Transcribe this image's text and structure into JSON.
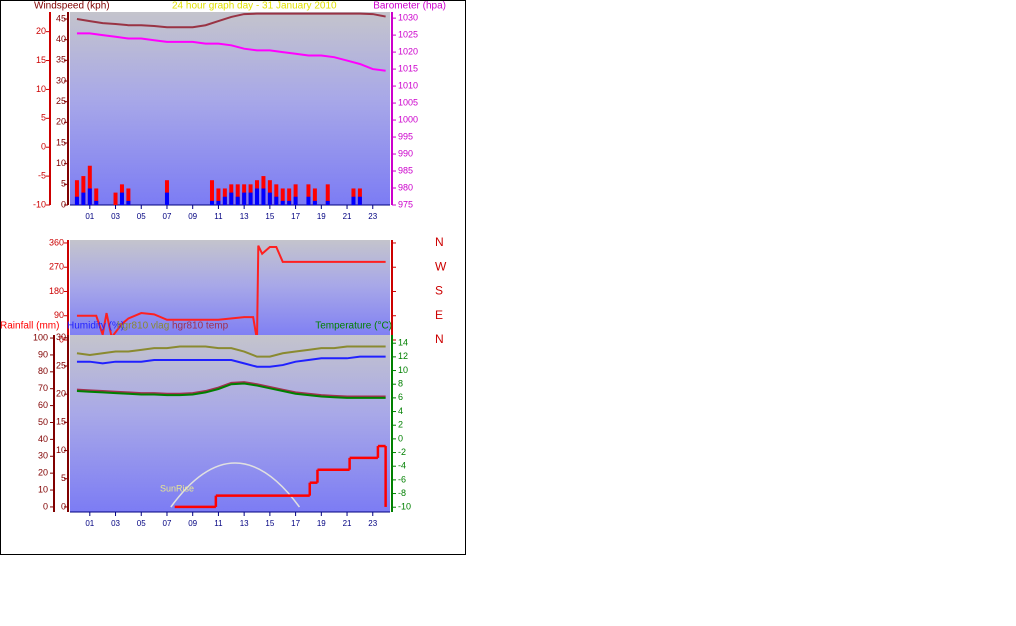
{
  "chart_data": [
    {
      "type": "combo",
      "title": "24 hour graph day - 31 January 2010",
      "ylabel": "Windspeed (kph)",
      "y2label": "Barometer (hpa)",
      "xlim": [
        -0.54,
        24.34
      ],
      "xticks": [
        {
          "value": 1,
          "label": "01"
        },
        {
          "value": 3,
          "label": "03"
        },
        {
          "value": 5,
          "label": "05"
        },
        {
          "value": 7,
          "label": "07"
        },
        {
          "value": 9,
          "label": "09"
        },
        {
          "value": 11,
          "label": "11"
        },
        {
          "value": 13,
          "label": "13"
        },
        {
          "value": 15,
          "label": "15"
        },
        {
          "value": 17,
          "label": "17"
        },
        {
          "value": 19,
          "label": "19"
        },
        {
          "value": 21,
          "label": "21"
        },
        {
          "value": 23,
          "label": "23"
        }
      ],
      "ylim": [
        0,
        46.7
      ],
      "yticks": [
        0,
        5,
        10,
        15,
        20,
        25,
        30,
        35,
        40,
        45
      ],
      "y3lim": [
        -10,
        23.4
      ],
      "y3ticks": [
        -10,
        -5,
        0,
        5,
        10,
        15,
        20
      ],
      "y2lim": [
        975,
        1031.8
      ],
      "y2ticks": [
        975,
        980,
        985,
        990,
        995,
        1000,
        1005,
        1010,
        1015,
        1020,
        1025,
        1030
      ],
      "series": [
        {
          "type": "bar",
          "color": "#ff0000",
          "x": [
            0,
            0.5,
            1,
            1.5,
            2,
            2.5,
            3,
            3.5,
            4,
            4.5,
            5,
            5.5,
            6,
            6.5,
            7,
            7.5,
            8,
            8.5,
            9,
            9.5,
            10,
            10.5,
            11,
            11.5,
            12,
            12.5,
            13,
            13.5,
            14,
            14.5,
            15,
            15.5,
            16,
            16.5,
            17,
            17.5,
            18,
            18.5,
            19,
            19.5,
            20,
            20.5,
            21,
            21.5,
            22,
            22.5,
            23,
            23.5
          ],
          "values": [
            6,
            7,
            9.5,
            4,
            0,
            0,
            3,
            5,
            4,
            0,
            0,
            0,
            0,
            0,
            6,
            0,
            0,
            0,
            0,
            0,
            0,
            6,
            4,
            4,
            5,
            5,
            5,
            5,
            6,
            7,
            6,
            5,
            4,
            4,
            5,
            0,
            5,
            4,
            0,
            5,
            0,
            0,
            0,
            4,
            4,
            0,
            0,
            0
          ]
        },
        {
          "type": "bar",
          "color": "#0000ff",
          "x": [
            0,
            0.5,
            1,
            1.5,
            2,
            2.5,
            3,
            3.5,
            4,
            4.5,
            5,
            5.5,
            6,
            6.5,
            7,
            7.5,
            8,
            8.5,
            9,
            9.5,
            10,
            10.5,
            11,
            11.5,
            12,
            12.5,
            13,
            13.5,
            14,
            14.5,
            15,
            15.5,
            16,
            16.5,
            17,
            17.5,
            18,
            18.5,
            19,
            19.5,
            20,
            20.5,
            21,
            21.5,
            22,
            22.5,
            23,
            23.5
          ],
          "values": [
            2,
            3,
            4,
            1,
            0,
            0,
            0,
            3,
            1,
            0,
            0,
            0,
            0,
            0,
            3,
            0,
            0,
            0,
            0,
            0,
            0,
            1,
            1,
            2,
            3,
            2,
            3,
            3,
            4,
            4,
            3,
            2,
            1,
            1,
            2,
            0,
            2,
            1,
            0,
            1,
            0,
            0,
            0,
            2,
            2,
            0,
            0,
            0
          ]
        },
        {
          "type": "line",
          "color": "#993344",
          "x": [
            0,
            1,
            2,
            3,
            4,
            5,
            6,
            7,
            8,
            9,
            10,
            11,
            12,
            13,
            14,
            15,
            16,
            17,
            18,
            19,
            20,
            21,
            22,
            23,
            24
          ],
          "values": [
            45,
            44.5,
            44,
            43.8,
            43.5,
            43.5,
            43.3,
            43,
            43,
            43,
            43.5,
            44.5,
            45.5,
            46.2,
            46.3,
            46.3,
            46.3,
            46.3,
            46.3,
            46.3,
            46.3,
            46.3,
            46.3,
            46.2,
            45.6
          ]
        },
        {
          "type": "line",
          "axis": "y2",
          "color": "#ff00ff",
          "x": [
            0,
            1,
            2,
            3,
            4,
            5,
            6,
            7,
            8,
            9,
            10,
            11,
            12,
            13,
            14,
            15,
            16,
            17,
            18,
            19,
            20,
            21,
            22,
            23,
            24
          ],
          "values": [
            1025.5,
            1025.5,
            1025,
            1024.5,
            1024,
            1024,
            1023.5,
            1023,
            1023,
            1023,
            1022.5,
            1022.5,
            1022,
            1021,
            1020.5,
            1020.5,
            1020,
            1019.5,
            1019,
            1019,
            1018.5,
            1017.5,
            1016.5,
            1015,
            1014.5
          ]
        }
      ]
    },
    {
      "type": "line",
      "xlim": [
        -0.54,
        24.34
      ],
      "ylim": [
        0,
        371
      ],
      "yticks": [
        0,
        90,
        180,
        270,
        360
      ],
      "y2lim": [
        0,
        371
      ],
      "y2ticks": [
        {
          "value": 0,
          "label": "N"
        },
        {
          "value": 90,
          "label": "E"
        },
        {
          "value": 180,
          "label": "S"
        },
        {
          "value": 270,
          "label": "W"
        },
        {
          "value": 360,
          "label": "N"
        }
      ],
      "series": [
        {
          "type": "line",
          "color": "#ff2020",
          "x": [
            0,
            1.5,
            2,
            2.3,
            2.7,
            3.5,
            4,
            5,
            6,
            7,
            11,
            13,
            13.7,
            14,
            14.1,
            14.4,
            15,
            15.5,
            16,
            24
          ],
          "values": [
            90,
            90,
            20,
            100,
            10,
            60,
            80,
            100,
            95,
            75,
            75,
            85,
            85,
            0,
            350,
            320,
            345,
            345,
            290,
            290
          ]
        }
      ]
    },
    {
      "type": "combo",
      "annotation": "SunRise",
      "xlim": [
        -0.54,
        24.34
      ],
      "xticks": [
        {
          "value": 1,
          "label": "01"
        },
        {
          "value": 3,
          "label": "03"
        },
        {
          "value": 5,
          "label": "05"
        },
        {
          "value": 7,
          "label": "07"
        },
        {
          "value": 9,
          "label": "09"
        },
        {
          "value": 11,
          "label": "11"
        },
        {
          "value": 13,
          "label": "13"
        },
        {
          "value": 15,
          "label": "15"
        },
        {
          "value": 17,
          "label": "17"
        },
        {
          "value": 19,
          "label": "19"
        },
        {
          "value": 21,
          "label": "21"
        },
        {
          "value": 23,
          "label": "23"
        }
      ],
      "ylim": [
        -3,
        101.8
      ],
      "yticks": [
        0,
        10,
        20,
        30,
        40,
        50,
        60,
        70,
        80,
        90,
        100
      ],
      "y3lim": [
        -0.9,
        30.5
      ],
      "y3ticks": [
        0,
        5,
        10,
        15,
        20,
        25,
        30
      ],
      "y2lim": [
        -10.7,
        15.2
      ],
      "y2ticks": [
        -10,
        -8,
        -6,
        -4,
        -2,
        0,
        2,
        4,
        6,
        8,
        10,
        12,
        14
      ],
      "series": [
        {
          "type": "step",
          "name": "Rainfall (mm)",
          "axis": "y3",
          "color": "#ff0000",
          "x": [
            7.6,
            10.8,
            18.1,
            18.7,
            21.2,
            23.4,
            24
          ],
          "values": [
            0,
            2,
            4.3,
            6.6,
            8.7,
            10.8,
            0
          ]
        },
        {
          "type": "line",
          "name": "Humidity (%)",
          "color": "#2020ff",
          "x": [
            0,
            1,
            2,
            3,
            4,
            5,
            6,
            7,
            8,
            9,
            10,
            11,
            12,
            13,
            14,
            15,
            16,
            17,
            18,
            19,
            20,
            21,
            22,
            23,
            24
          ],
          "values": [
            86,
            86,
            85,
            86,
            86,
            86,
            87,
            87,
            87,
            87,
            87,
            87,
            87,
            85,
            83,
            83,
            84,
            86,
            87,
            88,
            88,
            88,
            89,
            89,
            89
          ]
        },
        {
          "type": "line",
          "name": "hgr810 vlag",
          "color": "#8a8a30",
          "x": [
            0,
            1,
            2,
            3,
            4,
            5,
            6,
            7,
            8,
            9,
            10,
            11,
            12,
            13,
            14,
            15,
            16,
            17,
            18,
            19,
            20,
            21,
            22,
            23,
            24
          ],
          "values": [
            91,
            90,
            91,
            92,
            92,
            93,
            94,
            94,
            95,
            95,
            95,
            94,
            94,
            92,
            89,
            89,
            91,
            92,
            93,
            94,
            94,
            95,
            95,
            95,
            95
          ]
        },
        {
          "type": "line",
          "name": "hgr810 temp",
          "axis": "y2",
          "color": "#a03050",
          "x": [
            0,
            1,
            2,
            3,
            4,
            5,
            6,
            7,
            8,
            9,
            10,
            11,
            12,
            13,
            14,
            15,
            16,
            17,
            18,
            19,
            20,
            21,
            22,
            23,
            24
          ],
          "values": [
            7.2,
            7.1,
            7,
            6.9,
            6.8,
            6.7,
            6.7,
            6.6,
            6.6,
            6.7,
            7,
            7.5,
            8.2,
            8.3,
            8,
            7.6,
            7.2,
            6.8,
            6.6,
            6.4,
            6.3,
            6.2,
            6.2,
            6.2,
            6.2
          ]
        },
        {
          "type": "line",
          "name": "Temperature (°C)",
          "axis": "y2",
          "color": "#008000",
          "x": [
            0,
            1,
            2,
            3,
            4,
            5,
            6,
            7,
            8,
            9,
            10,
            11,
            12,
            13,
            14,
            15,
            16,
            17,
            18,
            19,
            20,
            21,
            22,
            23,
            24
          ],
          "values": [
            7,
            6.9,
            6.8,
            6.7,
            6.6,
            6.5,
            6.5,
            6.4,
            6.4,
            6.5,
            6.8,
            7.3,
            8,
            8.1,
            7.8,
            7.4,
            7,
            6.6,
            6.4,
            6.2,
            6.1,
            6,
            6,
            6,
            6
          ]
        }
      ]
    }
  ]
}
